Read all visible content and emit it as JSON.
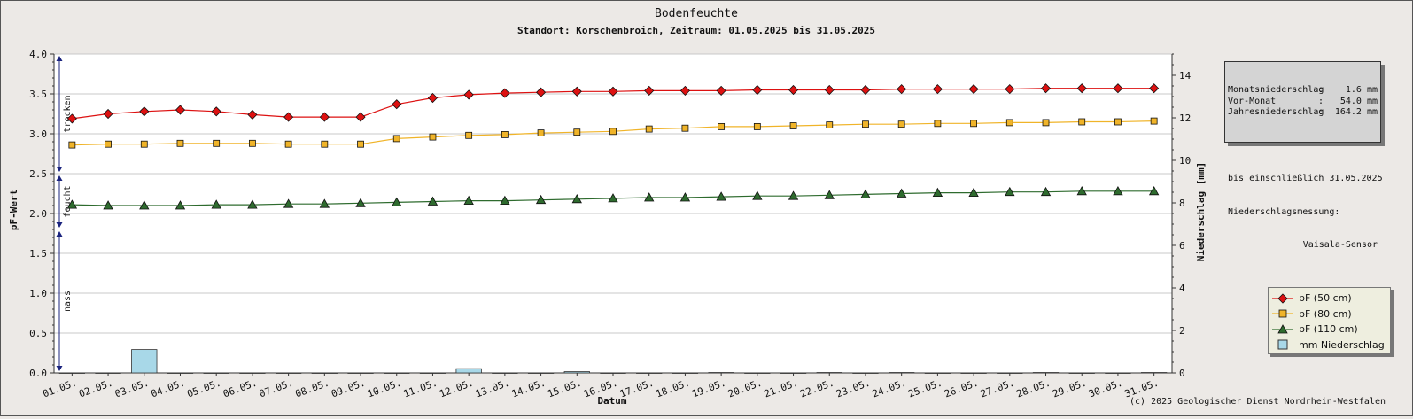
{
  "chart_data": {
    "type": "line",
    "title": "Bodenfeuchte",
    "subtitle": "Standort: Korschenbroich, Zeitraum: 01.05.2025 bis 31.05.2025",
    "xlabel": "Datum",
    "ylabel": "pF-Wert",
    "y2label": "Niederschlag [mm]",
    "ylim": [
      0,
      4
    ],
    "y2lim": [
      0,
      15
    ],
    "yticks": [
      "0.0",
      "0.5",
      "1.0",
      "1.5",
      "2.0",
      "2.5",
      "3.0",
      "3.5",
      "4.0"
    ],
    "y2ticks": [
      "0",
      "2",
      "4",
      "6",
      "8",
      "10",
      "12",
      "14"
    ],
    "grid": true,
    "legend_position": "bottom-right",
    "categories": [
      "01.05.",
      "02.05.",
      "03.05.",
      "04.05.",
      "05.05.",
      "06.05.",
      "07.05.",
      "08.05.",
      "09.05.",
      "10.05.",
      "11.05.",
      "12.05.",
      "13.05.",
      "14.05.",
      "15.05.",
      "16.05.",
      "17.05.",
      "18.05.",
      "19.05.",
      "20.05.",
      "21.05.",
      "22.05.",
      "23.05.",
      "24.05.",
      "25.05.",
      "26.05.",
      "27.05.",
      "28.05.",
      "29.05.",
      "30.05.",
      "31.05."
    ],
    "zones": [
      {
        "label": "trocken",
        "from": 2.5,
        "to": 4.0
      },
      {
        "label": "feucht",
        "from": 1.8,
        "to": 2.5
      },
      {
        "label": "nass",
        "from": 0.0,
        "to": 1.8
      }
    ],
    "series": [
      {
        "name": "pF (50 cm)",
        "color": "#dd1111",
        "marker": "diamond",
        "values": [
          3.19,
          3.25,
          3.28,
          3.3,
          3.28,
          3.24,
          3.21,
          3.21,
          3.21,
          3.37,
          3.45,
          3.49,
          3.51,
          3.52,
          3.53,
          3.53,
          3.54,
          3.54,
          3.54,
          3.55,
          3.55,
          3.55,
          3.55,
          3.56,
          3.56,
          3.56,
          3.56,
          3.57,
          3.57,
          3.57,
          3.57
        ]
      },
      {
        "name": "pF (80 cm)",
        "color": "#f0b429",
        "marker": "square",
        "values": [
          2.86,
          2.87,
          2.87,
          2.88,
          2.88,
          2.88,
          2.87,
          2.87,
          2.87,
          2.94,
          2.96,
          2.98,
          2.99,
          3.01,
          3.02,
          3.03,
          3.06,
          3.07,
          3.09,
          3.09,
          3.1,
          3.11,
          3.12,
          3.12,
          3.13,
          3.13,
          3.14,
          3.14,
          3.15,
          3.15,
          3.16
        ]
      },
      {
        "name": "pF (110 cm)",
        "color": "#2e6b2e",
        "marker": "triangle",
        "values": [
          2.11,
          2.1,
          2.1,
          2.1,
          2.11,
          2.11,
          2.12,
          2.12,
          2.13,
          2.14,
          2.15,
          2.16,
          2.16,
          2.17,
          2.18,
          2.19,
          2.2,
          2.2,
          2.21,
          2.22,
          2.22,
          2.23,
          2.24,
          2.25,
          2.26,
          2.26,
          2.27,
          2.27,
          2.28,
          2.28,
          2.28
        ]
      }
    ],
    "bars": {
      "name": "mm  Niederschlag",
      "color": "#a8d8e8",
      "axis": "y2",
      "values": [
        0,
        0,
        1.1,
        0,
        0,
        0,
        0,
        0,
        0,
        0,
        0,
        0.2,
        0,
        0,
        0.06,
        0,
        0,
        0,
        0.02,
        0,
        0,
        0.02,
        0,
        0.02,
        0,
        0,
        0,
        0.02,
        0,
        0,
        0.02
      ]
    }
  },
  "infobox": {
    "rows": [
      {
        "key": "Monatsniederschlag",
        "sep": ":",
        "value": "1.6 mm"
      },
      {
        "key": "Vor-Monat",
        "sep": ":",
        "value": "54.0 mm"
      },
      {
        "key": "Jahresniederschlag",
        "sep": ":",
        "value": "164.2 mm"
      }
    ],
    "note1": "bis einschließlich 31.05.2025",
    "note2": "Niederschlagsmessung:",
    "note3": "Vaisala-Sensor"
  },
  "footer": "(c) 2025 Geologischer Dienst Nordrhein-Westfalen"
}
